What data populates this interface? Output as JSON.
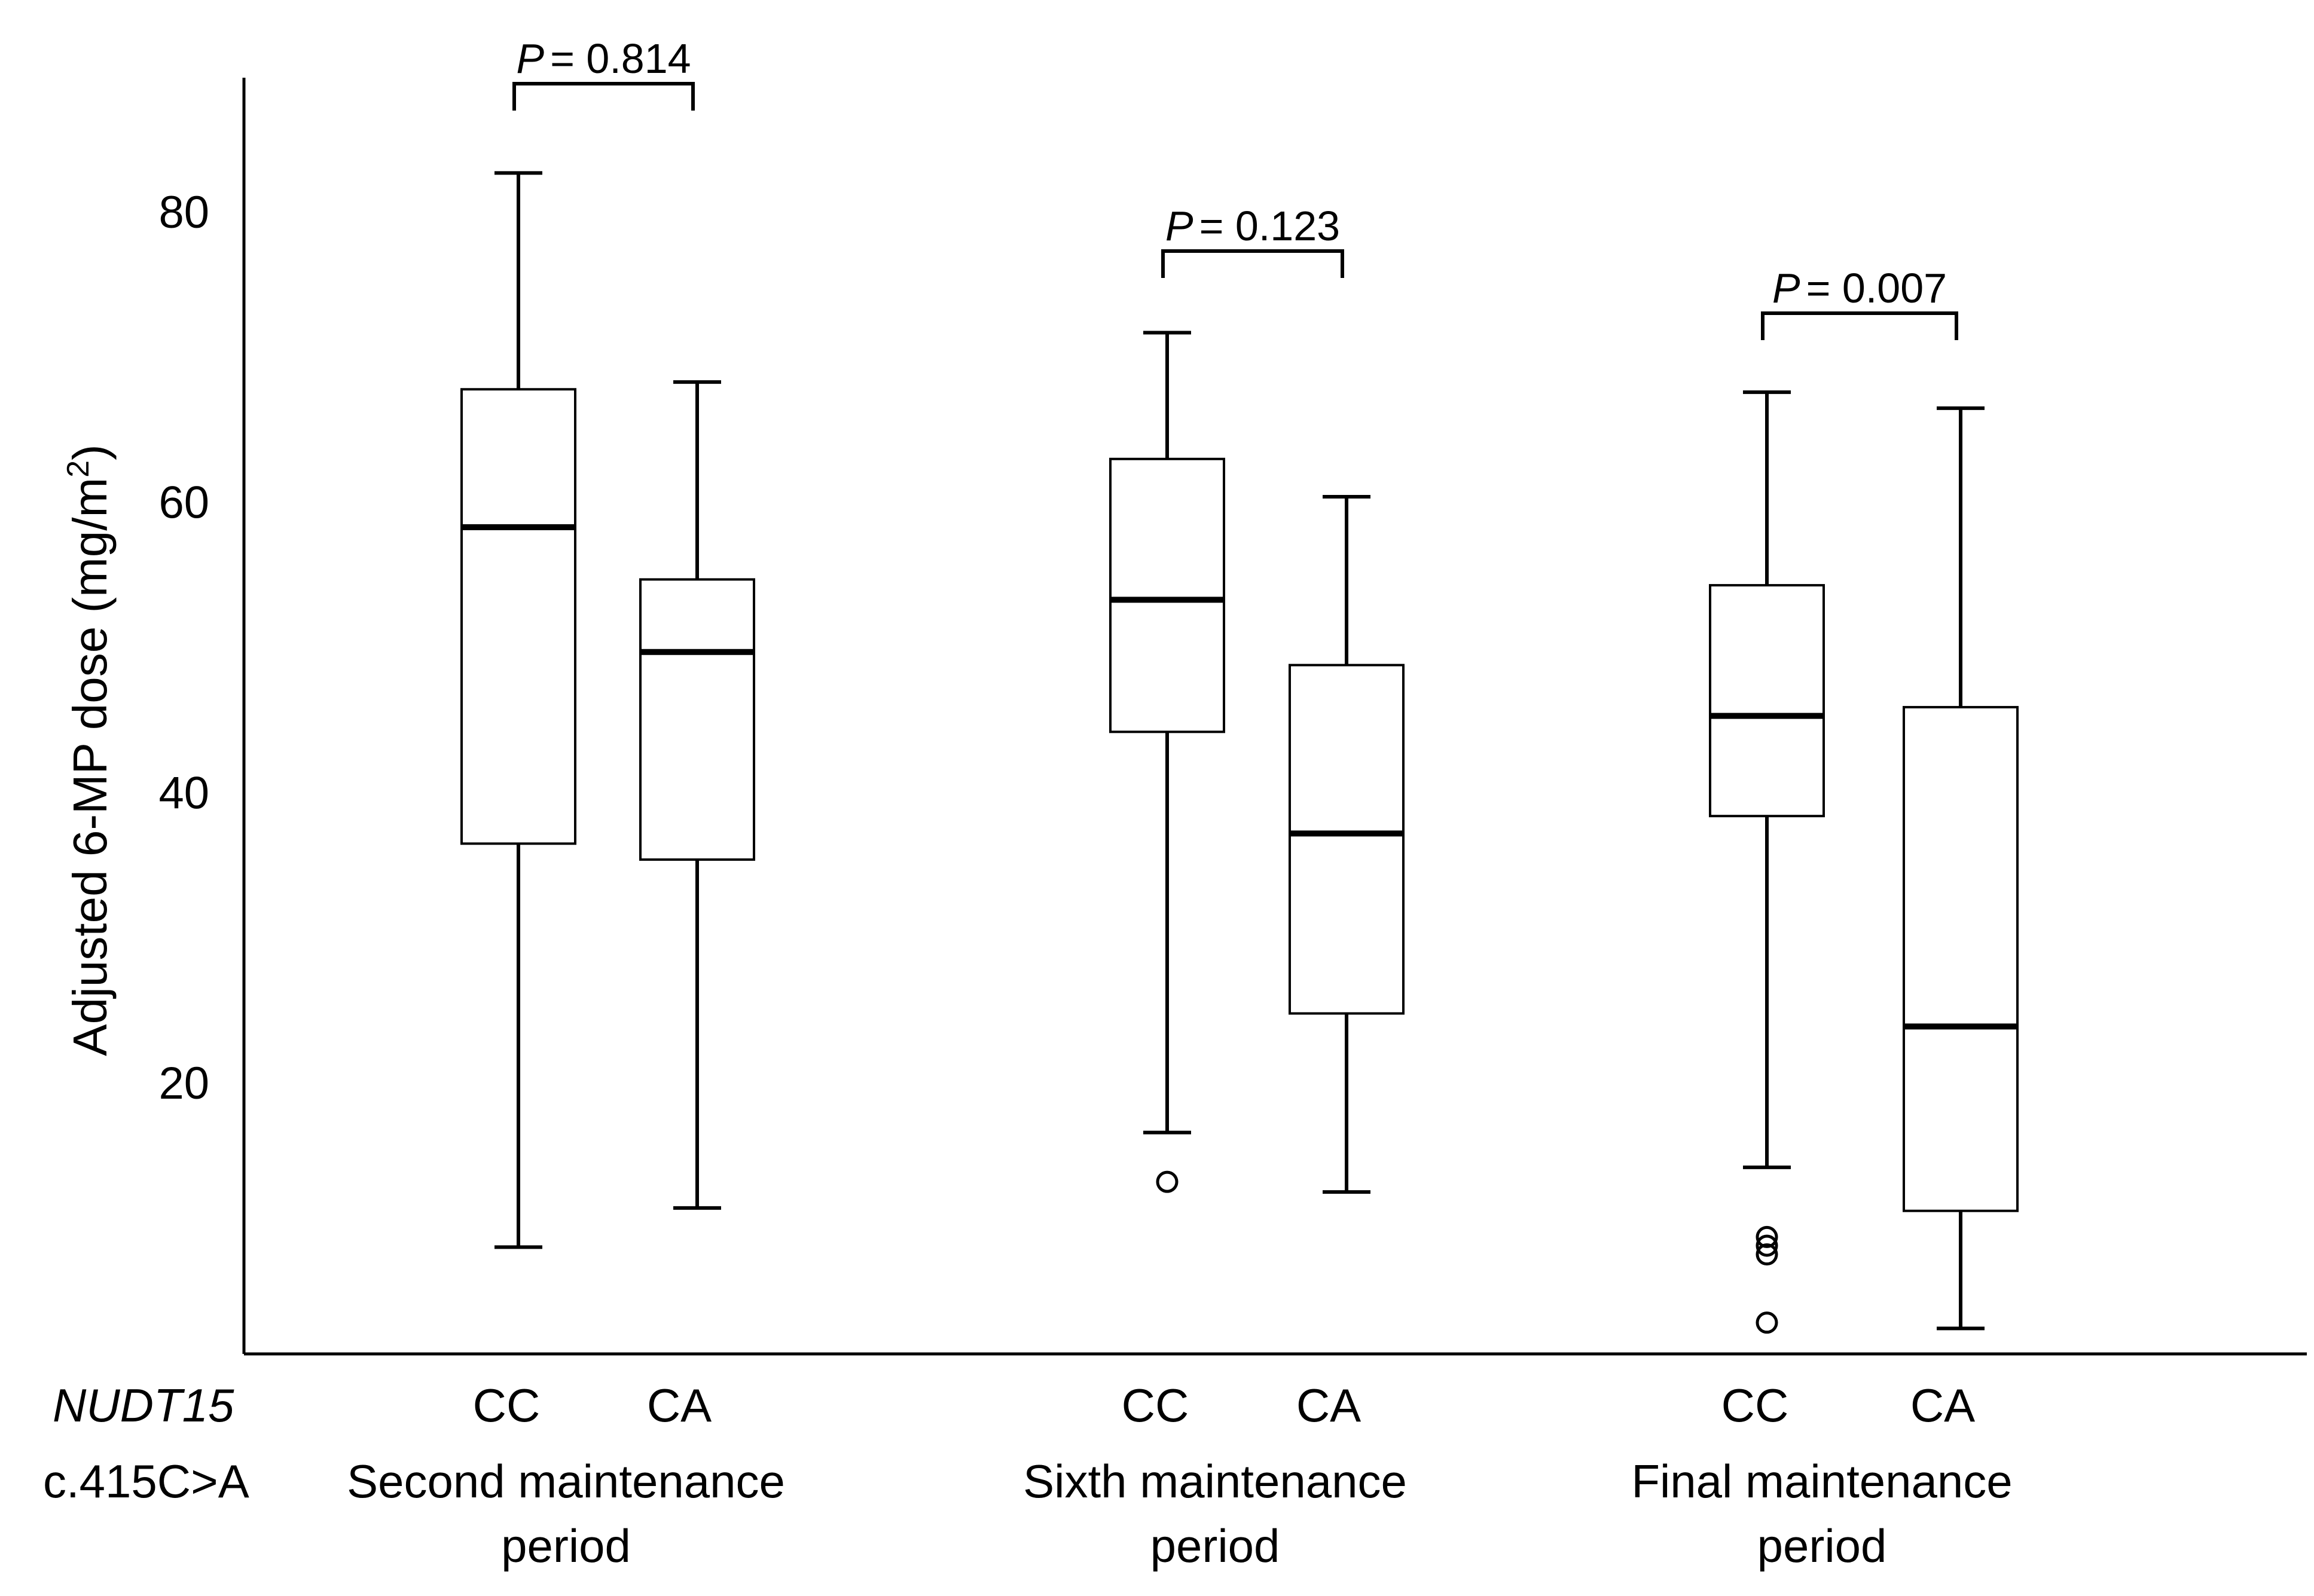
{
  "chart_data": {
    "type": "box",
    "ylabel": {
      "prefix": "Adjusted 6-MP dose (mg/m",
      "superscript": "2",
      "suffix": ")"
    },
    "ylim": [
      0,
      88
    ],
    "yticks": [
      20,
      40,
      60,
      80
    ],
    "gene_label": {
      "italic": "NUDT15",
      "variant": "c.415C>A"
    },
    "groups": [
      {
        "name_lines": [
          "Second  maintenance",
          "period"
        ],
        "p_label": "P",
        "p_value": "=  0.814",
        "boxes": [
          {
            "category": "CC",
            "min": 8.7,
            "q1": 36.5,
            "median": 58.3,
            "q3": 67.8,
            "max": 82.7,
            "outliers": []
          },
          {
            "category": "CA",
            "min": 11.4,
            "q1": 35.4,
            "median": 49.7,
            "q3": 54.7,
            "max": 68.3,
            "outliers": []
          }
        ]
      },
      {
        "name_lines": [
          "Sixth  maintenance",
          "period"
        ],
        "p_label": "P",
        "p_value": "=  0.123",
        "boxes": [
          {
            "category": "CC",
            "min": 16.6,
            "q1": 44.2,
            "median": 53.3,
            "q3": 63.0,
            "max": 71.7,
            "outliers": [
              13.2
            ]
          },
          {
            "category": "CA",
            "min": 12.5,
            "q1": 24.8,
            "median": 37.2,
            "q3": 48.8,
            "max": 60.4,
            "outliers": []
          }
        ]
      },
      {
        "name_lines": [
          "Final  maintenance",
          "period"
        ],
        "p_label": "P",
        "p_value": "=  0.007",
        "boxes": [
          {
            "category": "CC",
            "min": 14.2,
            "q1": 38.4,
            "median": 45.3,
            "q3": 54.3,
            "max": 67.6,
            "outliers": [
              8.2,
              8.8,
              9.4,
              3.5
            ]
          },
          {
            "category": "CA",
            "min": 3.1,
            "q1": 11.2,
            "median": 23.9,
            "q3": 45.9,
            "max": 66.5,
            "outliers": []
          }
        ]
      }
    ]
  }
}
